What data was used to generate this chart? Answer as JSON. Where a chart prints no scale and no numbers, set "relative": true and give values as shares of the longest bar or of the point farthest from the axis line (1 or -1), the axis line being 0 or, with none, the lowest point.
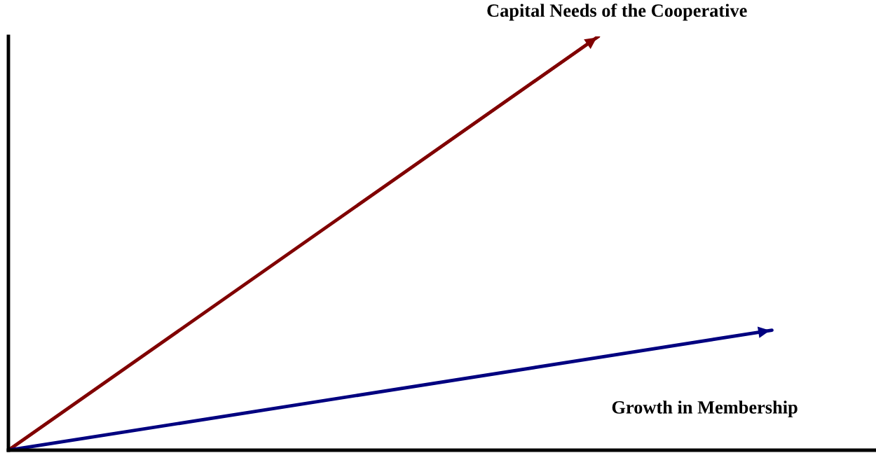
{
  "chart_data": {
    "type": "line",
    "relative": true,
    "categories": [
      null,
      null,
      null,
      null,
      null,
      null,
      null,
      null,
      null,
      null,
      null,
      null,
      null,
      null,
      null,
      null,
      null,
      null,
      null,
      null,
      null,
      null,
      null,
      null,
      null,
      null
    ],
    "series": [
      {
        "name": "Capital Needs of the Cooperative",
        "color": "#800000",
        "values": [
          0,
          null,
          null,
          null,
          null,
          null,
          null,
          null,
          null,
          null,
          null,
          null,
          null,
          null,
          null,
          null,
          null,
          1,
          null,
          null,
          null,
          null,
          null,
          null,
          null,
          null
        ]
      },
      {
        "name": "Growth in Membership",
        "color": "#000080",
        "values": [
          0,
          null,
          null,
          null,
          null,
          null,
          null,
          null,
          null,
          null,
          null,
          null,
          null,
          null,
          null,
          null,
          null,
          null,
          null,
          null,
          null,
          null,
          0.29,
          null,
          null,
          null
        ]
      }
    ]
  }
}
